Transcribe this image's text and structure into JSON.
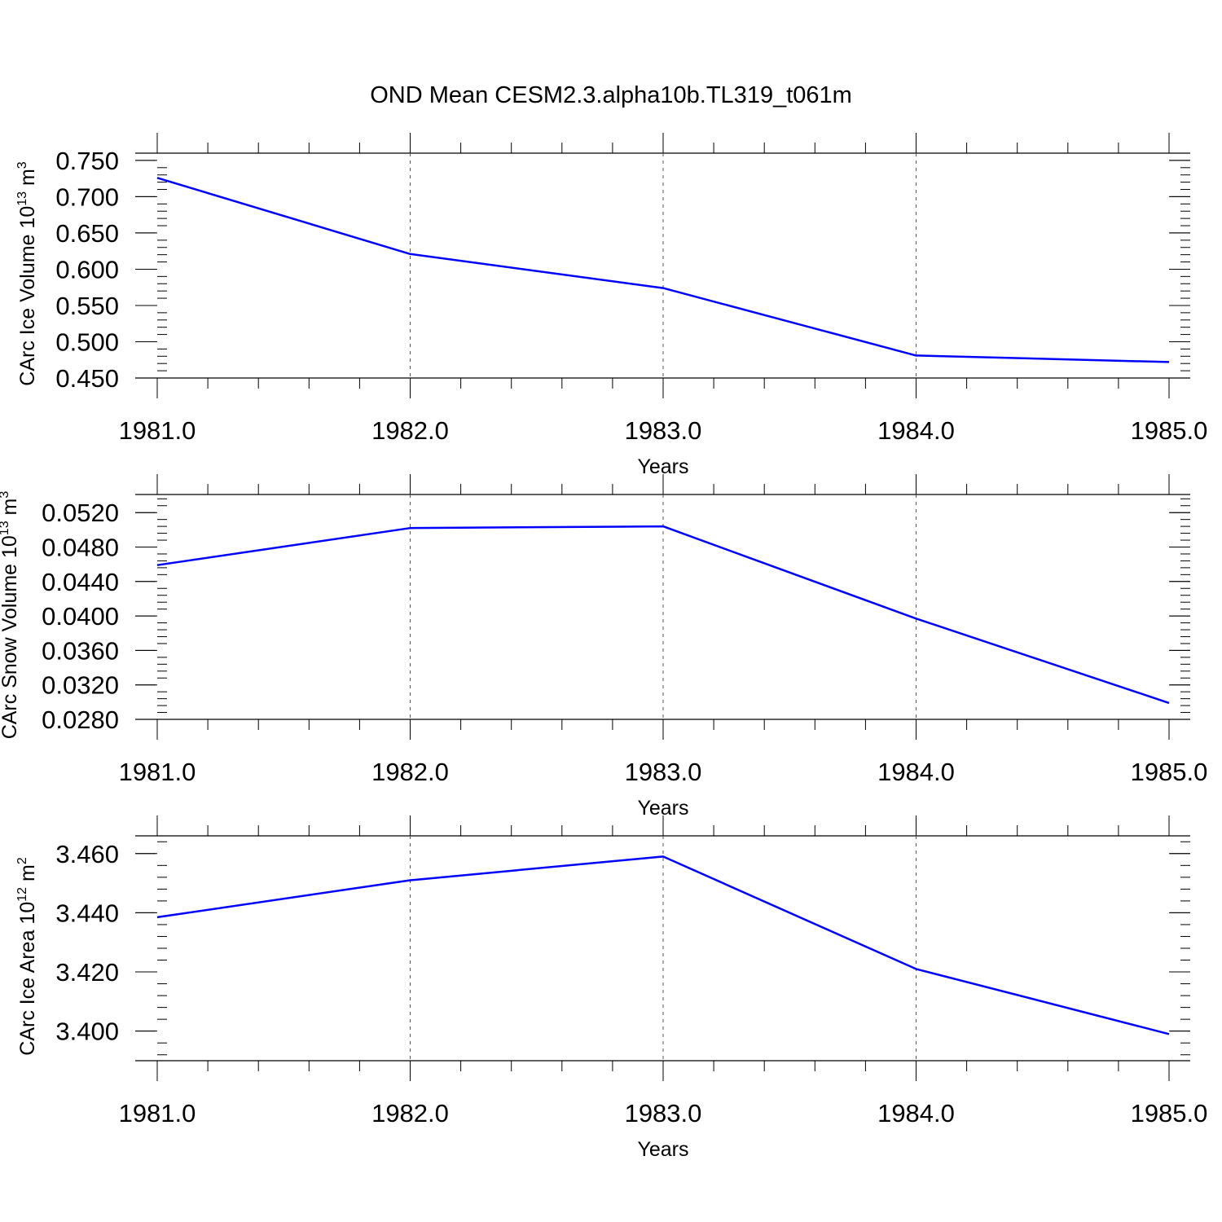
{
  "title": "OND Mean CESM2.3.alpha10b.TL319_t061m",
  "colors": {
    "line": "#0000ff",
    "frame": "#000000",
    "grid": "#555555",
    "background": "#ffffff"
  },
  "chart_data": [
    {
      "type": "line",
      "ylabel": "CArc Ice Volume 10",
      "ylabel_sup": "13",
      "ylabel_unit": " m",
      "ylabel_unit_sup": "3",
      "xlabel": "Years",
      "xlim": [
        1981.0,
        1985.0
      ],
      "ylim": [
        0.45,
        0.76
      ],
      "yticks": [
        0.45,
        0.5,
        0.55,
        0.6,
        0.65,
        0.7,
        0.75
      ],
      "ytick_labels": [
        "0.450",
        "0.500",
        "0.550",
        "0.600",
        "0.650",
        "0.700",
        "0.750"
      ],
      "xticks": [
        1981,
        1982,
        1983,
        1984,
        1985
      ],
      "xtick_labels": [
        "1981.0",
        "1982.0",
        "1983.0",
        "1984.0",
        "1985.0"
      ],
      "grid": "vertical dashed at major x ticks",
      "series": [
        {
          "x": [
            1981,
            1982,
            1983,
            1984,
            1985
          ],
          "values": [
            0.726,
            0.621,
            0.574,
            0.481,
            0.472
          ]
        }
      ]
    },
    {
      "type": "line",
      "ylabel": "CArc Snow Volume 10",
      "ylabel_sup": "13",
      "ylabel_unit": " m",
      "ylabel_unit_sup": "3",
      "xlabel": "Years",
      "xlim": [
        1981.0,
        1985.0
      ],
      "ylim": [
        0.028,
        0.0541
      ],
      "yticks": [
        0.028,
        0.032,
        0.036,
        0.04,
        0.044,
        0.048,
        0.052
      ],
      "ytick_labels": [
        "0.0280",
        "0.0320",
        "0.0360",
        "0.0400",
        "0.0440",
        "0.0480",
        "0.0520"
      ],
      "xticks": [
        1981,
        1982,
        1983,
        1984,
        1985
      ],
      "xtick_labels": [
        "1981.0",
        "1982.0",
        "1983.0",
        "1984.0",
        "1985.0"
      ],
      "grid": "vertical dashed at major x ticks",
      "series": [
        {
          "x": [
            1981,
            1982,
            1983,
            1984,
            1985
          ],
          "values": [
            0.0459,
            0.0502,
            0.0504,
            0.0397,
            0.0299
          ]
        }
      ]
    },
    {
      "type": "line",
      "ylabel": "CArc Ice Area 10",
      "ylabel_sup": "12",
      "ylabel_unit": " m",
      "ylabel_unit_sup": "2",
      "xlabel": "Years",
      "xlim": [
        1981.0,
        1985.0
      ],
      "ylim": [
        3.39,
        3.466
      ],
      "yticks": [
        3.4,
        3.42,
        3.44,
        3.46
      ],
      "ytick_labels": [
        "3.400",
        "3.420",
        "3.440",
        "3.460"
      ],
      "xticks": [
        1981,
        1982,
        1983,
        1984,
        1985
      ],
      "xtick_labels": [
        "1981.0",
        "1982.0",
        "1983.0",
        "1984.0",
        "1985.0"
      ],
      "grid": "vertical dashed at major x ticks",
      "series": [
        {
          "x": [
            1981,
            1982,
            1983,
            1984,
            1985
          ],
          "values": [
            3.4385,
            3.451,
            3.459,
            3.421,
            3.399
          ]
        }
      ]
    }
  ]
}
